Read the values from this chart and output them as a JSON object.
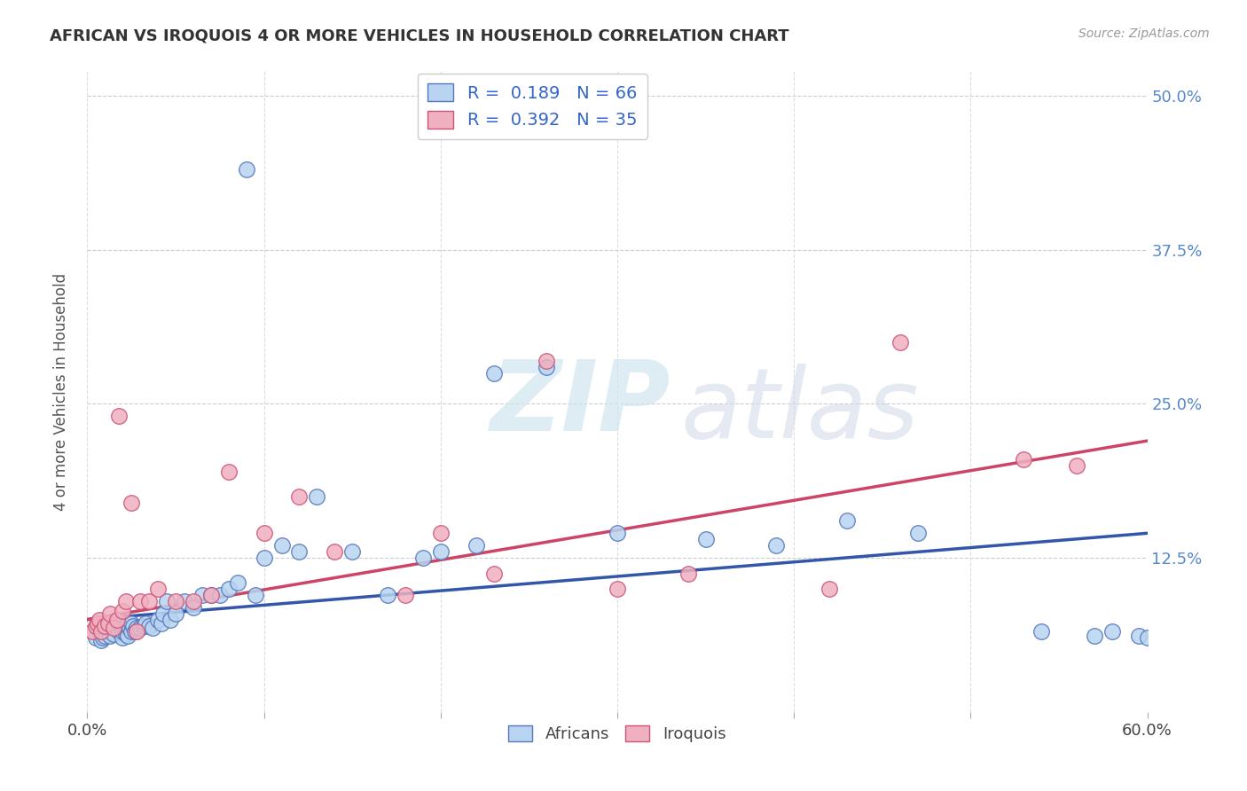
{
  "title": "AFRICAN VS IROQUOIS 4 OR MORE VEHICLES IN HOUSEHOLD CORRELATION CHART",
  "source": "Source: ZipAtlas.com",
  "ylabel": "4 or more Vehicles in Household",
  "xlim": [
    0.0,
    0.6
  ],
  "ylim": [
    0.0,
    0.52
  ],
  "xticks": [
    0.0,
    0.1,
    0.2,
    0.3,
    0.4,
    0.5,
    0.6
  ],
  "xticklabels": [
    "0.0%",
    "",
    "",
    "",
    "",
    "",
    "60.0%"
  ],
  "yticks": [
    0.0,
    0.125,
    0.25,
    0.375,
    0.5
  ],
  "yticklabels": [
    "",
    "12.5%",
    "25.0%",
    "37.5%",
    "50.0%"
  ],
  "legend_r_african": "0.189",
  "legend_n_african": "66",
  "legend_r_iroquois": "0.392",
  "legend_n_iroquois": "35",
  "african_fill": "#b8d4f0",
  "african_edge": "#5577bb",
  "iroquois_fill": "#f0b0c0",
  "iroquois_edge": "#cc5577",
  "line_african_color": "#3355aa",
  "line_iroquois_color": "#cc4466",
  "african_x": [
    0.005,
    0.007,
    0.008,
    0.009,
    0.01,
    0.01,
    0.012,
    0.013,
    0.015,
    0.015,
    0.016,
    0.018,
    0.018,
    0.02,
    0.02,
    0.021,
    0.022,
    0.022,
    0.023,
    0.024,
    0.025,
    0.025,
    0.026,
    0.027,
    0.028,
    0.03,
    0.032,
    0.033,
    0.035,
    0.037,
    0.04,
    0.042,
    0.043,
    0.045,
    0.047,
    0.05,
    0.055,
    0.06,
    0.065,
    0.07,
    0.075,
    0.08,
    0.085,
    0.09,
    0.095,
    0.1,
    0.11,
    0.12,
    0.13,
    0.15,
    0.17,
    0.19,
    0.2,
    0.22,
    0.23,
    0.26,
    0.3,
    0.35,
    0.39,
    0.43,
    0.47,
    0.54,
    0.57,
    0.58,
    0.595,
    0.6
  ],
  "african_y": [
    0.06,
    0.065,
    0.058,
    0.06,
    0.062,
    0.07,
    0.065,
    0.062,
    0.063,
    0.07,
    0.068,
    0.065,
    0.072,
    0.06,
    0.065,
    0.068,
    0.063,
    0.07,
    0.062,
    0.068,
    0.065,
    0.072,
    0.07,
    0.065,
    0.068,
    0.068,
    0.07,
    0.072,
    0.07,
    0.068,
    0.075,
    0.072,
    0.08,
    0.09,
    0.075,
    0.08,
    0.09,
    0.085,
    0.095,
    0.095,
    0.095,
    0.1,
    0.105,
    0.44,
    0.095,
    0.125,
    0.135,
    0.13,
    0.175,
    0.13,
    0.095,
    0.125,
    0.13,
    0.135,
    0.275,
    0.28,
    0.145,
    0.14,
    0.135,
    0.155,
    0.145,
    0.065,
    0.062,
    0.065,
    0.062,
    0.06
  ],
  "iroquois_x": [
    0.003,
    0.005,
    0.006,
    0.007,
    0.008,
    0.01,
    0.012,
    0.013,
    0.015,
    0.017,
    0.018,
    0.02,
    0.022,
    0.025,
    0.028,
    0.03,
    0.035,
    0.04,
    0.05,
    0.06,
    0.07,
    0.08,
    0.1,
    0.12,
    0.14,
    0.18,
    0.2,
    0.23,
    0.26,
    0.3,
    0.34,
    0.42,
    0.46,
    0.53,
    0.56
  ],
  "iroquois_y": [
    0.065,
    0.07,
    0.072,
    0.075,
    0.065,
    0.07,
    0.072,
    0.08,
    0.068,
    0.075,
    0.24,
    0.082,
    0.09,
    0.17,
    0.065,
    0.09,
    0.09,
    0.1,
    0.09,
    0.09,
    0.095,
    0.195,
    0.145,
    0.175,
    0.13,
    0.095,
    0.145,
    0.112,
    0.285,
    0.1,
    0.112,
    0.1,
    0.3,
    0.205,
    0.2
  ],
  "line_african_start_x": 0.0,
  "line_african_start_y": 0.075,
  "line_african_end_x": 0.6,
  "line_african_end_y": 0.145,
  "line_iroquois_start_x": 0.0,
  "line_iroquois_start_y": 0.075,
  "line_iroquois_end_x": 0.6,
  "line_iroquois_end_y": 0.22
}
